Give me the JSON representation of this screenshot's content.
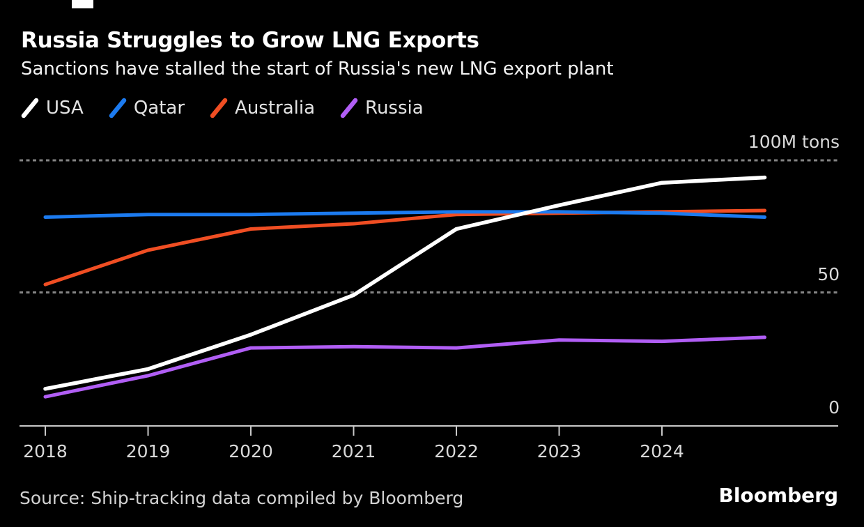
{
  "header": {
    "title": "Russia Struggles to Grow LNG Exports",
    "subtitle": "Sanctions have stalled the start of Russia's new LNG export plant"
  },
  "legend": [
    {
      "label": "USA",
      "color": "#ffffff"
    },
    {
      "label": "Qatar",
      "color": "#1c7bf0"
    },
    {
      "label": "Australia",
      "color": "#f04e23"
    },
    {
      "label": "Russia",
      "color": "#b15ef5"
    }
  ],
  "chart_data": {
    "type": "line",
    "x": [
      2018,
      2019,
      2020,
      2021,
      2022,
      2023,
      2024,
      2025
    ],
    "x_tick_labels": [
      "2018",
      "2019",
      "2020",
      "2021",
      "2022",
      "2023",
      "2024"
    ],
    "unit": "M tons",
    "series": [
      {
        "name": "USA",
        "color": "#ffffff",
        "values": [
          13.5,
          21,
          34,
          49,
          74,
          83,
          91.5,
          93.5
        ]
      },
      {
        "name": "Qatar",
        "color": "#1c7bf0",
        "values": [
          78.5,
          79.5,
          79.5,
          80,
          80.5,
          80.5,
          80,
          78.5
        ]
      },
      {
        "name": "Australia",
        "color": "#f04e23",
        "values": [
          53,
          66,
          74,
          76,
          79.5,
          80,
          80.5,
          81
        ]
      },
      {
        "name": "Russia",
        "color": "#b15ef5",
        "values": [
          10.5,
          18.5,
          29,
          29.5,
          29,
          32,
          31.5,
          33
        ]
      }
    ],
    "y_ticks": [
      {
        "value": 100,
        "label": "100M tons"
      },
      {
        "value": 50,
        "label": "50"
      },
      {
        "value": 0,
        "label": "0"
      }
    ],
    "ylim": [
      0,
      105
    ],
    "grid": "horizontal dashed at 50 and 100, solid baseline at 0",
    "legend_position": "top-left",
    "colors": {
      "grid": "#858585",
      "axis": "#c9c9c9",
      "tick_label": "#d9d9d9"
    }
  },
  "footer": {
    "source": "Source: Ship-tracking data compiled by Bloomberg",
    "brand": "Bloomberg"
  }
}
